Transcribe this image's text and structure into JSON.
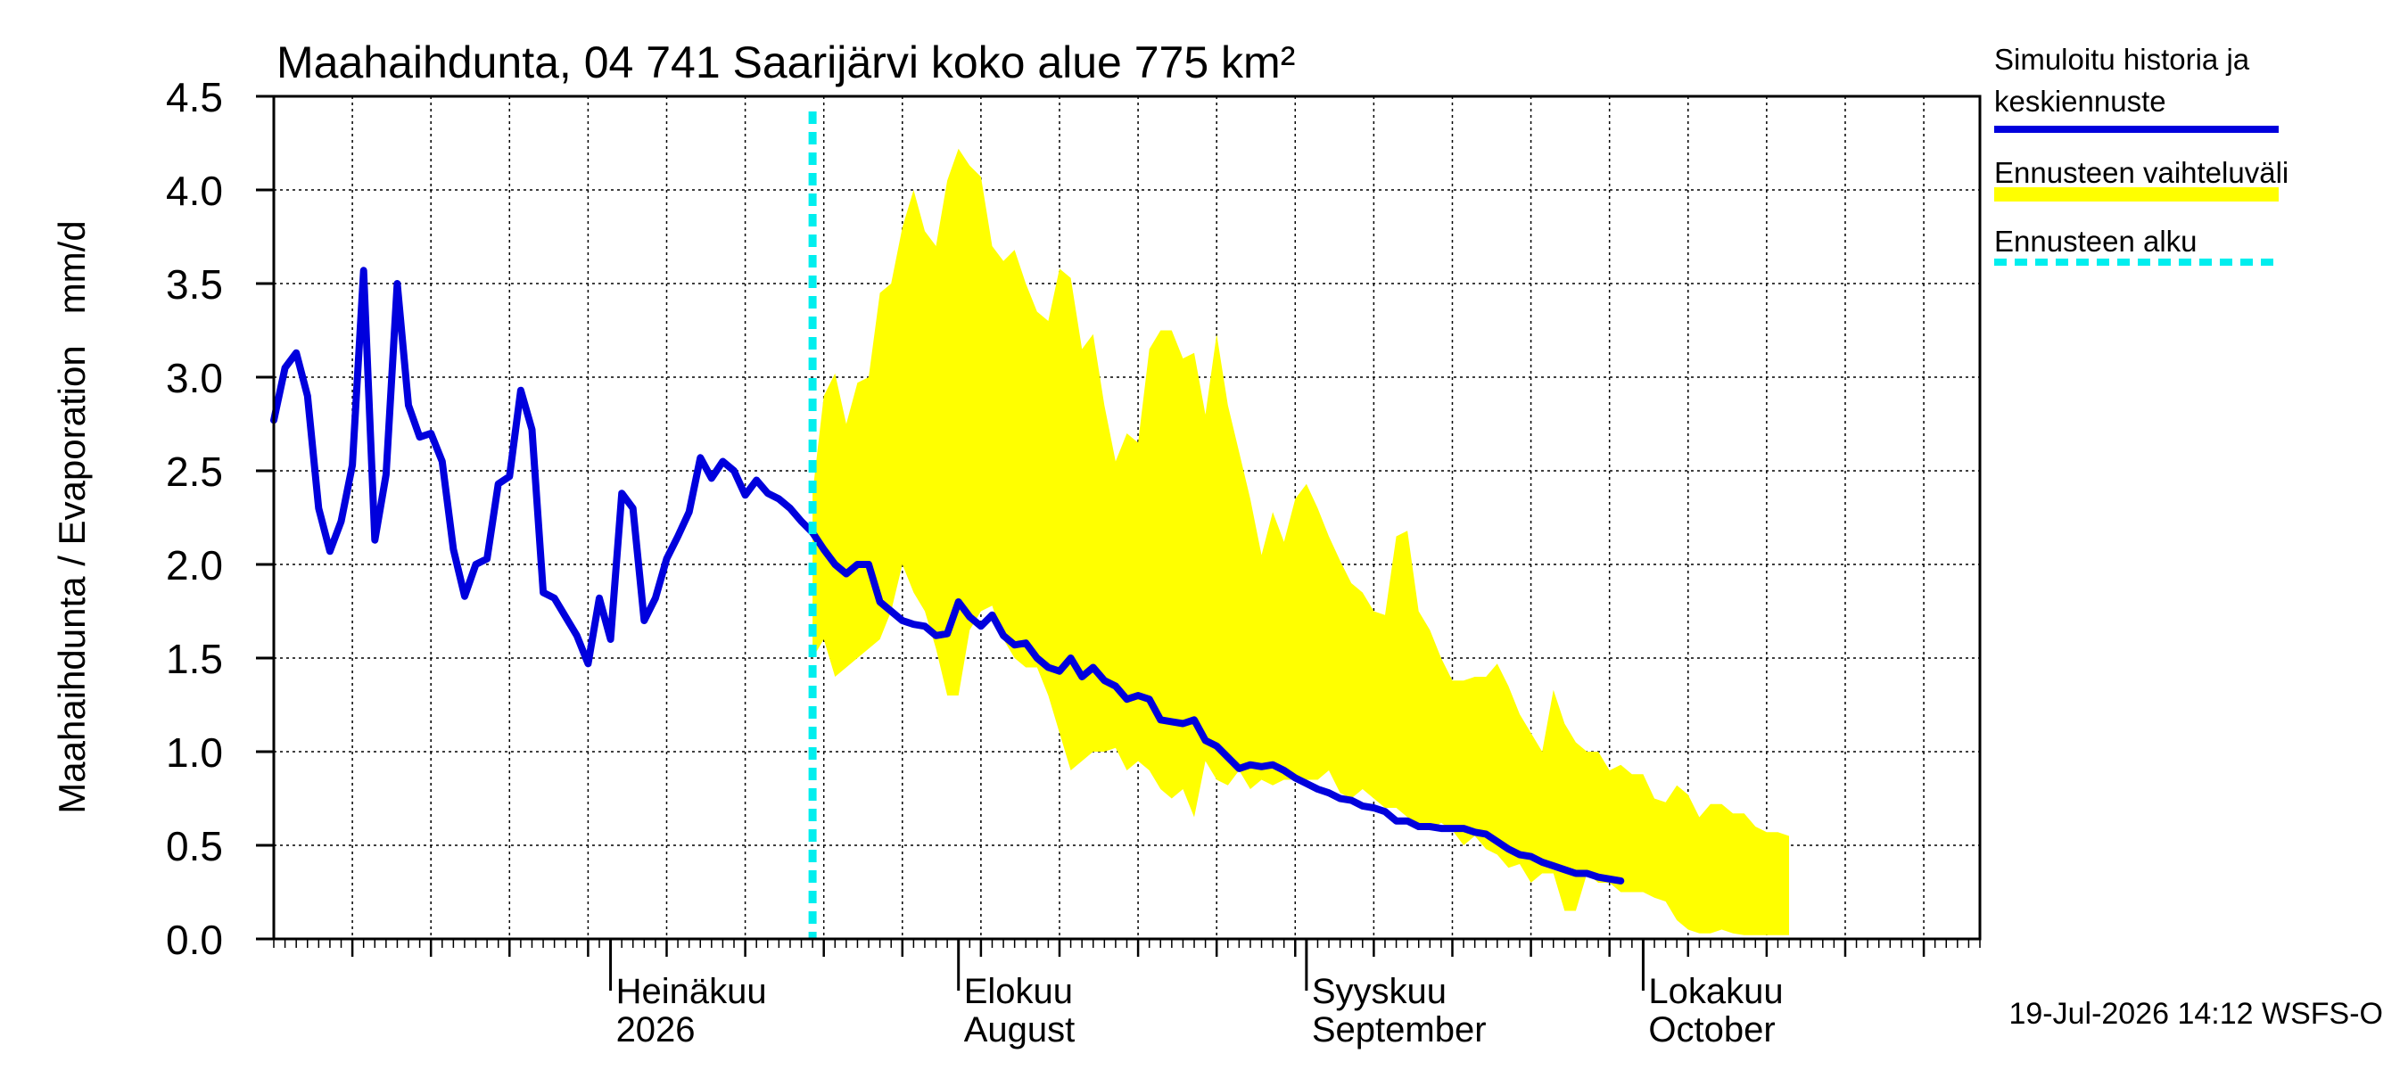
{
  "chart_data": {
    "type": "line",
    "title": "Maahaihdunta, 04 741 Saarijärvi koko alue 775 km²",
    "ylabel": "Maahaihdunta / Evaporation   mm/d",
    "xlabel": "",
    "ylim": [
      0,
      4.5
    ],
    "xlim": [
      "2026-06-01",
      "2026-10-31"
    ],
    "grid": true,
    "legend_position": "right",
    "y_ticks": [
      "0.0",
      "0.5",
      "1.0",
      "1.5",
      "2.0",
      "2.5",
      "3.0",
      "3.5",
      "4.0",
      "4.5"
    ],
    "x_month_labels": [
      {
        "date": "2026-07-01",
        "line1": "Heinäkuu",
        "line2": "2026"
      },
      {
        "date": "2026-08-01",
        "line1": "Elokuu",
        "line2": "August"
      },
      {
        "date": "2026-09-01",
        "line1": "Syyskuu",
        "line2": "September"
      },
      {
        "date": "2026-10-01",
        "line1": "Lokakuu",
        "line2": "October"
      }
    ],
    "forecast_start": "2026-07-19",
    "colors": {
      "simulated": "#0000dd",
      "band": "#ffff00",
      "forecast_start": "#00eeee"
    },
    "legend": [
      {
        "label_line1": "Simuloitu historia ja",
        "label_line2": "keskiennuste",
        "type": "line",
        "color": "#0000dd"
      },
      {
        "label_line1": "Ennusteen vaihteluväli",
        "label_line2": "",
        "type": "band",
        "color": "#ffff00"
      },
      {
        "label_line1": "Ennusteen alku",
        "label_line2": "",
        "type": "dashed",
        "color": "#00eeee"
      }
    ],
    "footer": "19-Jul-2026 14:12 WSFS-O",
    "series": [
      {
        "name": "Simuloitu historia ja keskiennuste",
        "start_date": "2026-06-01",
        "values": [
          2.77,
          3.05,
          3.13,
          2.9,
          2.3,
          2.07,
          2.23,
          2.53,
          3.57,
          2.13,
          2.48,
          3.5,
          2.85,
          2.68,
          2.7,
          2.55,
          2.08,
          1.83,
          2.0,
          2.03,
          2.43,
          2.47,
          2.93,
          2.72,
          1.85,
          1.82,
          1.72,
          1.62,
          1.47,
          1.82,
          1.6,
          2.38,
          2.3,
          1.7,
          1.82,
          2.03,
          2.15,
          2.28,
          2.57,
          2.46,
          2.55,
          2.5,
          2.37,
          2.45,
          2.38,
          2.35,
          2.3,
          2.23,
          2.17,
          2.08,
          2.0,
          1.95,
          2.0,
          2.0,
          1.8,
          1.75,
          1.7,
          1.68,
          1.67,
          1.62,
          1.63,
          1.8,
          1.72,
          1.67,
          1.73,
          1.62,
          1.57,
          1.58,
          1.5,
          1.45,
          1.43,
          1.5,
          1.4,
          1.45,
          1.38,
          1.35,
          1.28,
          1.3,
          1.28,
          1.17,
          1.16,
          1.15,
          1.17,
          1.06,
          1.03,
          0.97,
          0.91,
          0.93,
          0.92,
          0.93,
          0.9,
          0.86,
          0.83,
          0.8,
          0.78,
          0.75,
          0.74,
          0.71,
          0.7,
          0.68,
          0.63,
          0.63,
          0.6,
          0.6,
          0.59,
          0.59,
          0.59,
          0.57,
          0.56,
          0.52,
          0.48,
          0.45,
          0.44,
          0.41,
          0.39,
          0.37,
          0.35,
          0.35,
          0.33,
          0.32,
          0.31
        ]
      }
    ],
    "band": {
      "start_date": "2026-07-19",
      "upper": [
        2.38,
        2.9,
        3.02,
        2.75,
        2.97,
        3.0,
        3.45,
        3.5,
        3.8,
        4.0,
        3.78,
        3.7,
        4.05,
        4.22,
        4.13,
        4.07,
        3.7,
        3.62,
        3.68,
        3.5,
        3.35,
        3.3,
        3.58,
        3.53,
        3.15,
        3.23,
        2.85,
        2.55,
        2.7,
        2.65,
        3.15,
        3.25,
        3.25,
        3.1,
        3.13,
        2.8,
        3.23,
        2.85,
        2.6,
        2.35,
        2.05,
        2.28,
        2.12,
        2.35,
        2.43,
        2.3,
        2.15,
        2.02,
        1.9,
        1.85,
        1.75,
        1.73,
        2.15,
        2.18,
        1.75,
        1.65,
        1.5,
        1.38,
        1.38,
        1.4,
        1.4,
        1.47,
        1.35,
        1.2,
        1.1,
        1.0,
        1.33,
        1.15,
        1.05,
        1.0,
        1.0,
        0.9,
        0.93,
        0.88,
        0.88,
        0.75,
        0.73,
        0.82,
        0.77,
        0.65,
        0.72,
        0.72,
        0.67,
        0.67,
        0.6,
        0.57,
        0.57,
        0.55
      ],
      "lower": [
        1.5,
        1.6,
        1.4,
        1.45,
        1.5,
        1.55,
        1.6,
        1.75,
        2.0,
        1.85,
        1.75,
        1.55,
        1.3,
        1.3,
        1.65,
        1.75,
        1.78,
        1.6,
        1.5,
        1.45,
        1.45,
        1.3,
        1.1,
        0.9,
        0.95,
        1.0,
        1.0,
        1.02,
        0.9,
        0.95,
        0.9,
        0.8,
        0.75,
        0.8,
        0.65,
        0.95,
        0.85,
        0.82,
        0.9,
        0.8,
        0.85,
        0.82,
        0.85,
        0.85,
        0.85,
        0.85,
        0.9,
        0.78,
        0.75,
        0.8,
        0.75,
        0.7,
        0.7,
        0.65,
        0.6,
        0.58,
        0.62,
        0.58,
        0.5,
        0.55,
        0.48,
        0.45,
        0.38,
        0.4,
        0.3,
        0.35,
        0.35,
        0.15,
        0.15,
        0.35,
        0.3,
        0.3,
        0.25,
        0.25,
        0.25,
        0.22,
        0.2,
        0.1,
        0.05,
        0.03,
        0.03,
        0.05,
        0.03,
        0.02,
        0.02,
        0.02,
        0.02,
        0.02
      ]
    }
  }
}
